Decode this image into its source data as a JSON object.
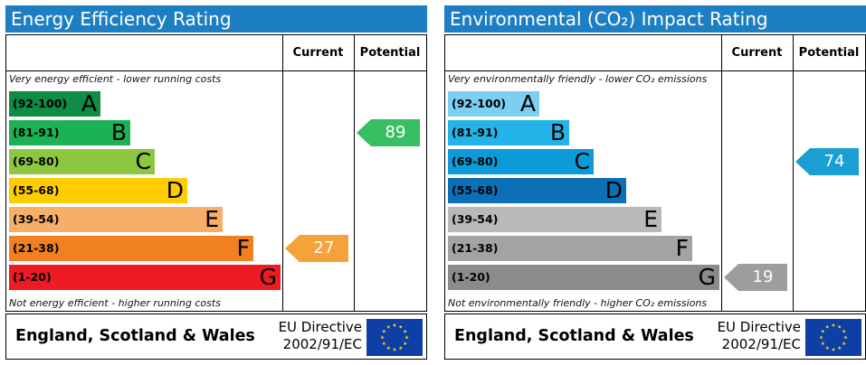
{
  "colors": {
    "title_bar": "#1d7fc3",
    "energy_bands": [
      "#0f8c45",
      "#1db155",
      "#8dc63f",
      "#ffcc00",
      "#f6ae6a",
      "#f08020",
      "#ed1c24"
    ],
    "environmental_bands": [
      "#7ccff2",
      "#23b3e8",
      "#0c9ad8",
      "#0d6fb6",
      "#b9b9b9",
      "#a3a3a3",
      "#8b8b8b"
    ],
    "eu_flag": "#0e3fa6",
    "eu_stars": "#ffdd00"
  },
  "icons": {
    "eu_flag": "eu-flag-icon"
  },
  "chart_data": [
    {
      "type": "bar",
      "title": "Energy Efficiency Rating",
      "columns": [
        "Current",
        "Potential"
      ],
      "top_note": "Very energy efficient - lower running costs",
      "bottom_note": "Not energy efficient - higher running costs",
      "bands": [
        {
          "range": "(92-100)",
          "letter": "A",
          "min": 92,
          "max": 100
        },
        {
          "range": "(81-91)",
          "letter": "B",
          "min": 81,
          "max": 91
        },
        {
          "range": "(69-80)",
          "letter": "C",
          "min": 69,
          "max": 80
        },
        {
          "range": "(55-68)",
          "letter": "D",
          "min": 55,
          "max": 68
        },
        {
          "range": "(39-54)",
          "letter": "E",
          "min": 39,
          "max": 54
        },
        {
          "range": "(21-38)",
          "letter": "F",
          "min": 21,
          "max": 38
        },
        {
          "range": "(1-20)",
          "letter": "G",
          "min": 1,
          "max": 20
        }
      ],
      "current": {
        "value": 27,
        "band": "F",
        "color": "#f6a23a"
      },
      "potential": {
        "value": 89,
        "band": "B",
        "color": "#38bf64"
      },
      "footer": {
        "region": "England, Scotland & Wales",
        "directive_line1": "EU Directive",
        "directive_line2": "2002/91/EC"
      }
    },
    {
      "type": "bar",
      "title": "Environmental (CO₂) Impact Rating",
      "columns": [
        "Current",
        "Potential"
      ],
      "top_note": "Very environmentally friendly - lower CO₂ emissions",
      "bottom_note": "Not environmentally friendly - higher CO₂ emissions",
      "bands": [
        {
          "range": "(92-100)",
          "letter": "A",
          "min": 92,
          "max": 100
        },
        {
          "range": "(81-91)",
          "letter": "B",
          "min": 81,
          "max": 91
        },
        {
          "range": "(69-80)",
          "letter": "C",
          "min": 69,
          "max": 80
        },
        {
          "range": "(55-68)",
          "letter": "D",
          "min": 55,
          "max": 68
        },
        {
          "range": "(39-54)",
          "letter": "E",
          "min": 39,
          "max": 54
        },
        {
          "range": "(21-38)",
          "letter": "F",
          "min": 21,
          "max": 38
        },
        {
          "range": "(1-20)",
          "letter": "G",
          "min": 1,
          "max": 20
        }
      ],
      "current": {
        "value": 19,
        "band": "G",
        "color": "#9d9d9d"
      },
      "potential": {
        "value": 74,
        "band": "C",
        "color": "#1a9fd3"
      },
      "footer": {
        "region": "England, Scotland & Wales",
        "directive_line1": "EU Directive",
        "directive_line2": "2002/91/EC"
      }
    }
  ]
}
